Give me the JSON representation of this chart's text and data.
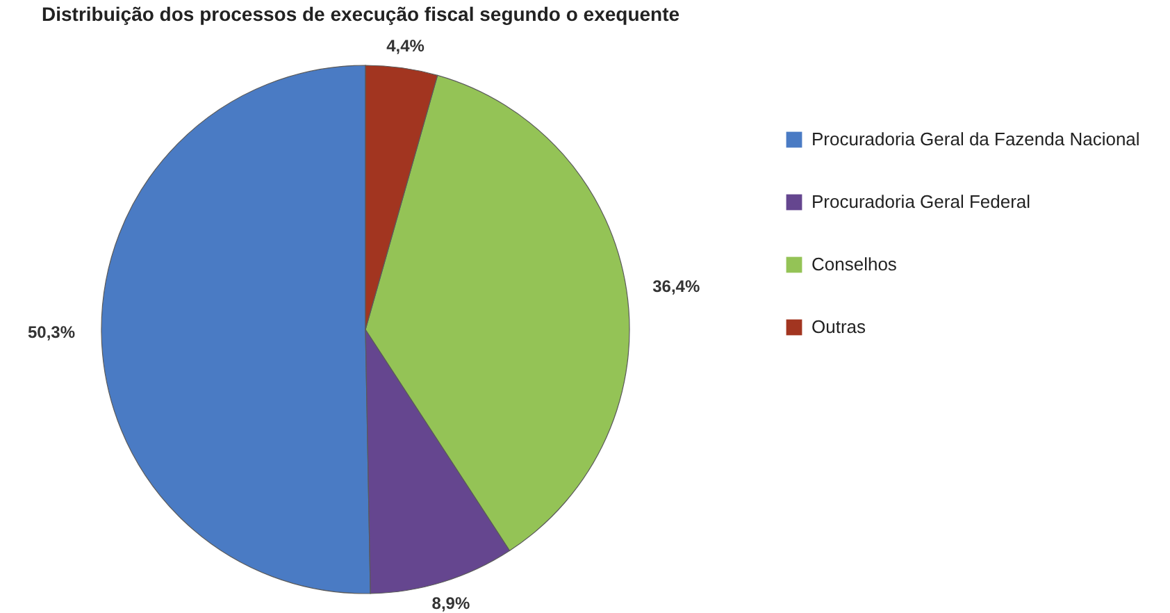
{
  "chart_data": {
    "type": "pie",
    "title": "Distribuição dos processos de execução fiscal segundo o exequente",
    "categories": [
      "Procuradoria Geral da Fazenda Nacional",
      "Procuradoria Geral Federal",
      "Conselhos",
      "Outras"
    ],
    "values": [
      50.3,
      8.9,
      36.4,
      4.4
    ],
    "colors": [
      "#4a7bc4",
      "#65468f",
      "#94c356",
      "#a23520"
    ],
    "value_labels": [
      "50,3%",
      "8,9%",
      "36,4%",
      "4,4%"
    ],
    "legend": "right"
  }
}
